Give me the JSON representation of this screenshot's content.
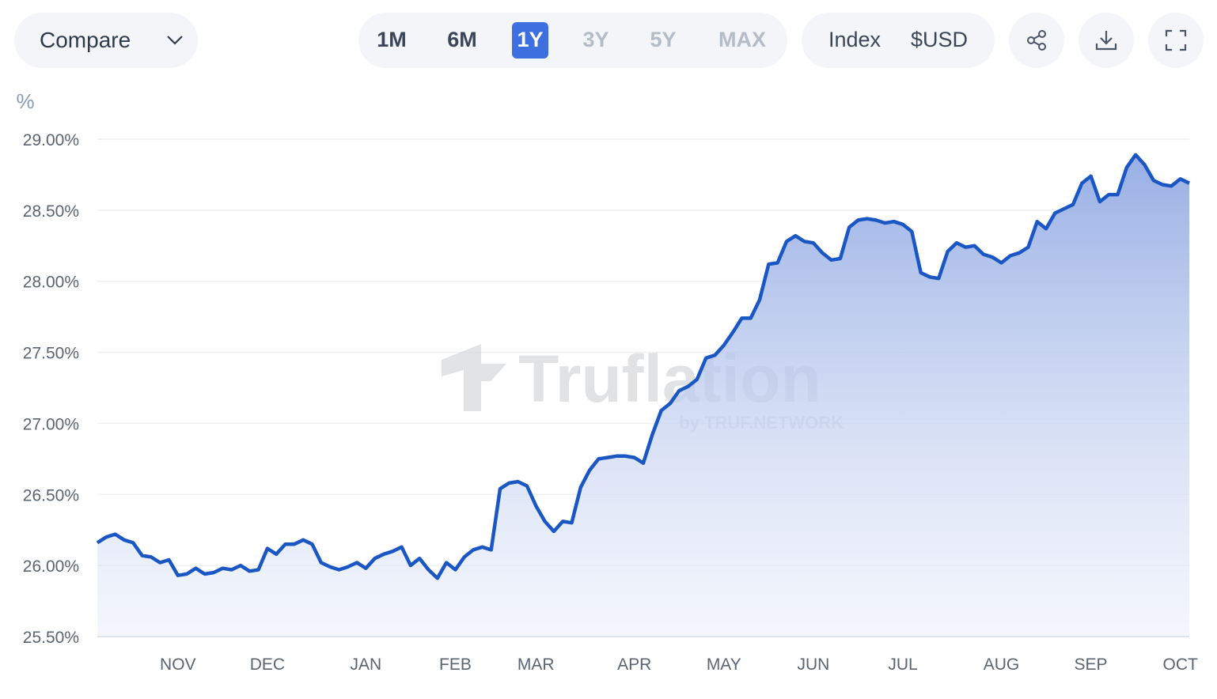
{
  "controls": {
    "compare": "Compare",
    "ranges": [
      {
        "label": "1M",
        "active": false,
        "enabled": true
      },
      {
        "label": "6M",
        "active": false,
        "enabled": true
      },
      {
        "label": "1Y",
        "active": true,
        "enabled": true
      },
      {
        "label": "3Y",
        "active": false,
        "enabled": false
      },
      {
        "label": "5Y",
        "active": false,
        "enabled": false
      },
      {
        "label": "MAX",
        "active": false,
        "enabled": false
      }
    ],
    "units": [
      "Index",
      "$USD"
    ]
  },
  "watermark": {
    "brand": "Truflation",
    "byline": "by TRUF.NETWORK"
  },
  "chart_data": {
    "type": "area",
    "y_label": "%",
    "color": "#1a56c4",
    "grid": true,
    "categories": [
      null,
      null,
      null,
      null,
      null,
      null,
      null,
      null,
      null,
      "NOV",
      null,
      null,
      null,
      null,
      null,
      null,
      null,
      null,
      null,
      "DEC",
      null,
      null,
      null,
      null,
      null,
      null,
      null,
      null,
      null,
      null,
      "JAN",
      null,
      null,
      null,
      null,
      null,
      null,
      null,
      null,
      null,
      "FEB",
      null,
      null,
      null,
      null,
      null,
      null,
      null,
      null,
      "MAR",
      null,
      null,
      null,
      null,
      null,
      null,
      null,
      null,
      null,
      null,
      "APR",
      null,
      null,
      null,
      null,
      null,
      null,
      null,
      null,
      null,
      "MAY",
      null,
      null,
      null,
      null,
      null,
      null,
      null,
      null,
      null,
      "JUN",
      null,
      null,
      null,
      null,
      null,
      null,
      null,
      null,
      null,
      "JUL",
      null,
      null,
      null,
      null,
      null,
      null,
      null,
      null,
      null,
      null,
      "AUG",
      null,
      null,
      null,
      null,
      null,
      null,
      null,
      null,
      null,
      "SEP",
      null,
      null,
      null,
      null,
      null,
      null,
      null,
      null,
      null,
      "OCT",
      null
    ],
    "values": [
      26.16,
      26.2,
      26.22,
      26.18,
      26.16,
      26.07,
      26.06,
      26.02,
      26.04,
      25.93,
      25.94,
      25.98,
      25.94,
      25.95,
      25.98,
      25.97,
      26.0,
      25.96,
      25.97,
      26.12,
      26.08,
      26.15,
      26.15,
      26.18,
      26.15,
      26.02,
      25.99,
      25.97,
      25.99,
      26.02,
      25.98,
      26.05,
      26.08,
      26.1,
      26.13,
      26.0,
      26.05,
      25.97,
      25.91,
      26.02,
      25.97,
      26.06,
      26.11,
      26.13,
      26.11,
      26.54,
      26.58,
      26.59,
      26.56,
      26.42,
      26.31,
      26.24,
      26.31,
      26.3,
      26.55,
      26.67,
      26.75,
      26.76,
      26.77,
      26.77,
      26.76,
      26.72,
      26.92,
      27.09,
      27.14,
      27.23,
      27.26,
      27.31,
      27.46,
      27.48,
      27.55,
      27.64,
      27.74,
      27.74,
      27.87,
      28.12,
      28.13,
      28.28,
      28.32,
      28.28,
      28.27,
      28.2,
      28.15,
      28.16,
      28.38,
      28.43,
      28.44,
      28.43,
      28.41,
      28.42,
      28.4,
      28.35,
      28.06,
      28.03,
      28.02,
      28.21,
      28.27,
      28.24,
      28.25,
      28.19,
      28.17,
      28.13,
      28.18,
      28.2,
      28.24,
      28.42,
      28.37,
      28.48,
      28.51,
      28.54,
      28.69,
      28.74,
      28.56,
      28.61,
      28.61,
      28.8,
      28.89,
      28.82,
      28.71,
      28.68,
      28.67,
      28.72,
      28.69
    ],
    "ylim": [
      25.5,
      29.0
    ],
    "yticks": [
      {
        "value": 25.5,
        "label": "25.50%"
      },
      {
        "value": 26.0,
        "label": "26.00%"
      },
      {
        "value": 26.5,
        "label": "26.50%"
      },
      {
        "value": 27.0,
        "label": "27.00%"
      },
      {
        "value": 27.5,
        "label": "27.50%"
      },
      {
        "value": 28.0,
        "label": "28.00%"
      },
      {
        "value": 28.5,
        "label": "28.50%"
      },
      {
        "value": 29.0,
        "label": "29.00%"
      }
    ]
  }
}
